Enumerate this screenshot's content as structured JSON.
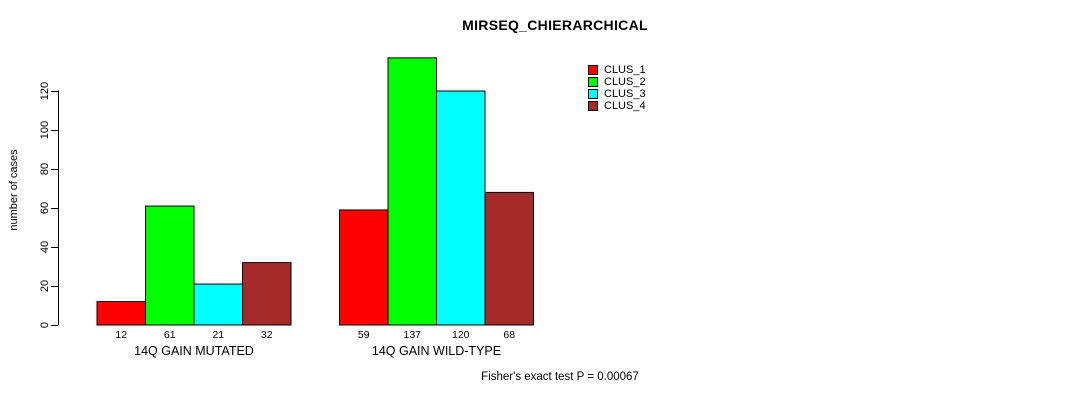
{
  "chart_data": {
    "type": "bar",
    "title": "MIRSEQ_CHIERARCHICAL",
    "ylabel": "number of cases",
    "xlabel": "",
    "categories": [
      "14Q GAIN MUTATED",
      "14Q GAIN WILD-TYPE"
    ],
    "series": [
      {
        "name": "CLUS_1",
        "color": "#FF0000",
        "values": [
          12,
          59
        ]
      },
      {
        "name": "CLUS_2",
        "color": "#00FF00",
        "values": [
          61,
          137
        ]
      },
      {
        "name": "CLUS_3",
        "color": "#00FFFF",
        "values": [
          21,
          120
        ]
      },
      {
        "name": "CLUS_4",
        "color": "#A52A2A",
        "values": [
          32,
          68
        ]
      }
    ],
    "yticks": [
      0,
      20,
      40,
      60,
      80,
      100,
      120
    ],
    "ylim": [
      0,
      140
    ],
    "grid": false,
    "legend_position": "top-right",
    "bar_border_color": "#000000",
    "note": "Fisher's exact test P = 0.00067"
  }
}
